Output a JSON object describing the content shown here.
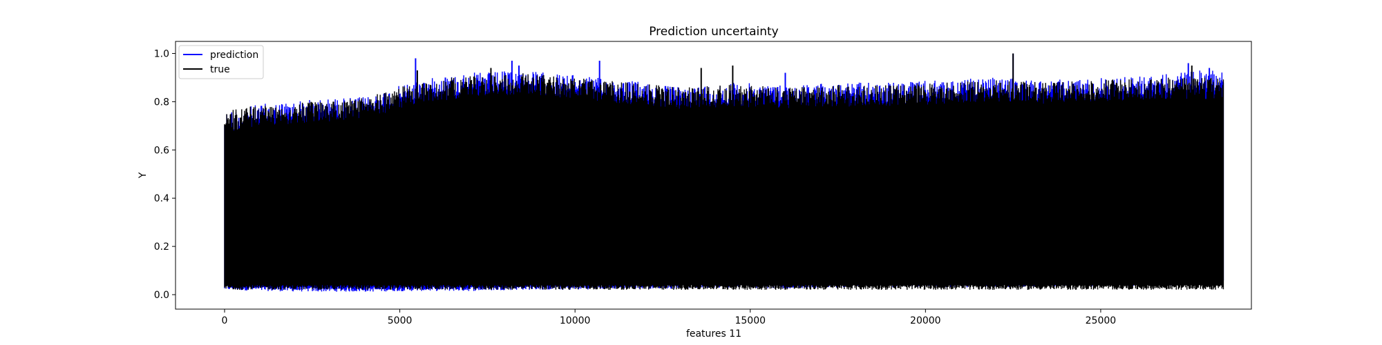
{
  "chart_data": {
    "type": "line",
    "title": "Prediction uncertainty",
    "xlabel": "features 11",
    "ylabel": "Y",
    "xlim": [
      -1400,
      29300
    ],
    "ylim": [
      -0.06,
      1.05
    ],
    "x_ticks": [
      0,
      5000,
      10000,
      15000,
      20000,
      25000
    ],
    "x_tick_labels": [
      "0",
      "5000",
      "10000",
      "15000",
      "20000",
      "25000"
    ],
    "y_ticks": [
      0.0,
      0.2,
      0.4,
      0.6,
      0.8,
      1.0
    ],
    "y_tick_labels": [
      "0.0",
      "0.2",
      "0.4",
      "0.6",
      "0.8",
      "1.0"
    ],
    "grid": false,
    "legend_position": "upper-left",
    "x_range": [
      0,
      28500
    ],
    "series": [
      {
        "name": "prediction",
        "color": "#0000ff",
        "envelope_x": [
          0,
          1000,
          2500,
          4000,
          5500,
          7000,
          8500,
          10000,
          11500,
          13000,
          14500,
          16000,
          17500,
          19000,
          20500,
          22000,
          23500,
          25000,
          26500,
          28500
        ],
        "envelope_upper": [
          0.76,
          0.79,
          0.81,
          0.82,
          0.89,
          0.92,
          0.93,
          0.91,
          0.89,
          0.86,
          0.88,
          0.87,
          0.88,
          0.88,
          0.89,
          0.9,
          0.89,
          0.9,
          0.91,
          0.94
        ],
        "envelope_lower": [
          0.02,
          0.015,
          0.012,
          0.012,
          0.015,
          0.015,
          0.02,
          0.02,
          0.025,
          0.025,
          0.03,
          0.025,
          0.03,
          0.03,
          0.03,
          0.03,
          0.035,
          0.035,
          0.035,
          0.04
        ],
        "peaks": [
          [
            5450,
            0.98
          ],
          [
            6300,
            0.9
          ],
          [
            8200,
            0.97
          ],
          [
            8400,
            0.95
          ],
          [
            10700,
            0.97
          ],
          [
            16000,
            0.92
          ],
          [
            22500,
            1.0
          ],
          [
            27500,
            0.96
          ],
          [
            28100,
            0.94
          ]
        ]
      },
      {
        "name": "true",
        "color": "#000000",
        "envelope_x": [
          0,
          1000,
          2500,
          4000,
          5500,
          7000,
          8500,
          10000,
          11500,
          13000,
          14500,
          16000,
          17500,
          19000,
          20500,
          22000,
          23500,
          25000,
          26500,
          28500
        ],
        "envelope_upper": [
          0.76,
          0.79,
          0.8,
          0.82,
          0.88,
          0.91,
          0.92,
          0.9,
          0.88,
          0.86,
          0.87,
          0.86,
          0.87,
          0.87,
          0.88,
          0.89,
          0.88,
          0.89,
          0.9,
          0.9
        ],
        "envelope_lower": [
          0.02,
          0.02,
          0.02,
          0.02,
          0.02,
          0.02,
          0.02,
          0.02,
          0.02,
          0.02,
          0.02,
          0.02,
          0.02,
          0.02,
          0.02,
          0.02,
          0.02,
          0.02,
          0.02,
          0.02
        ],
        "peaks": [
          [
            5500,
            0.93
          ],
          [
            7600,
            0.94
          ],
          [
            13600,
            0.94
          ],
          [
            14500,
            0.95
          ],
          [
            22500,
            1.0
          ],
          [
            27600,
            0.95
          ]
        ]
      }
    ]
  }
}
